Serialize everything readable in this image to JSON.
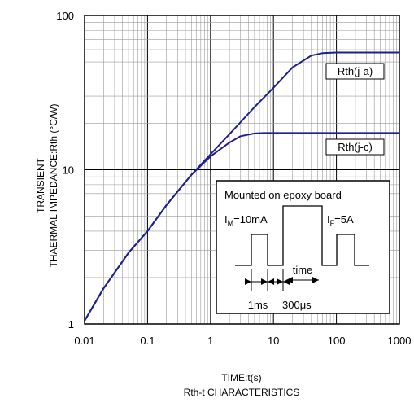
{
  "chart_data": {
    "type": "line",
    "title": "Rth-t CHARACTERISTICS",
    "xlabel": "TIME:t(s)",
    "ylabel_lines": [
      "TRANSIENT",
      "THAERMAL IMPEDANCE:Rth (°C/W)"
    ],
    "x_scale": "log",
    "y_scale": "log",
    "xlim": [
      0.01,
      1000
    ],
    "ylim": [
      1,
      100
    ],
    "x_ticks": [
      0.01,
      0.1,
      1,
      10,
      100,
      1000
    ],
    "x_tick_labels": [
      "0.01",
      "0.1",
      "1",
      "10",
      "100",
      "1000"
    ],
    "y_ticks": [
      1,
      10,
      100
    ],
    "y_tick_labels": [
      "1",
      "10",
      "100"
    ],
    "grid": true,
    "series": [
      {
        "name": "Rth(j-a)",
        "x": [
          0.01,
          0.02,
          0.05,
          0.1,
          0.2,
          0.5,
          1,
          2,
          5,
          10,
          20,
          40,
          60,
          100,
          300,
          1000
        ],
        "y": [
          1.05,
          1.7,
          2.9,
          4.0,
          5.9,
          9.3,
          12.6,
          17.0,
          25.5,
          34.0,
          46.0,
          55.0,
          57.0,
          57.5,
          57.5,
          57.5
        ]
      },
      {
        "name": "Rth(j-c)",
        "x": [
          0.01,
          0.02,
          0.05,
          0.1,
          0.2,
          0.5,
          1,
          2,
          3,
          5,
          7,
          10,
          100,
          1000
        ],
        "y": [
          1.05,
          1.7,
          2.9,
          4.0,
          5.9,
          9.3,
          12.2,
          15.0,
          16.5,
          17.2,
          17.3,
          17.3,
          17.3,
          17.3
        ]
      }
    ],
    "annotation": {
      "heading": "Mounted on epoxy board",
      "im_label": "I",
      "im_sub": "M",
      "im_value": "=10mA",
      "if_label": "I",
      "if_sub": "F",
      "if_value": "=5A",
      "time_label": "time",
      "t1_label": "1ms",
      "t2_label": "300μs"
    },
    "line_color": "#1f1f8f"
  }
}
